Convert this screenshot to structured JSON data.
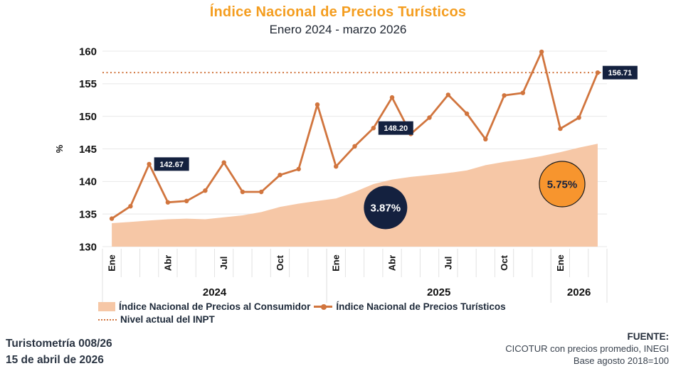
{
  "header": {
    "title": "Índice Nacional de Precios Turísticos",
    "subtitle": "Enero 2024 - marzo 2026"
  },
  "chart_data": {
    "type": "line",
    "title": "Índice Nacional de Precios Turísticos",
    "subtitle": "Enero 2024 - marzo 2026",
    "ylabel": "%",
    "ylim": [
      130,
      160
    ],
    "ytick_step": 5,
    "grid": "horizontal",
    "categories": [
      "Ene 2024",
      "Feb 2024",
      "Mar 2024",
      "Abr 2024",
      "May 2024",
      "Jun 2024",
      "Jul 2024",
      "Ago 2024",
      "Sep 2024",
      "Oct 2024",
      "Nov 2024",
      "Dic 2024",
      "Ene 2025",
      "Feb 2025",
      "Mar 2025",
      "Abr 2025",
      "May 2025",
      "Jun 2025",
      "Jul 2025",
      "Ago 2025",
      "Sep 2025",
      "Oct 2025",
      "Nov 2025",
      "Dic 2025",
      "Ene 2026",
      "Feb 2026",
      "Mar 2026"
    ],
    "month_tick_labels": [
      "Ene",
      "",
      "",
      "Abr",
      "",
      "",
      "Jul",
      "",
      "",
      "Oct",
      "",
      "",
      "Ene",
      "",
      "",
      "Abr",
      "",
      "",
      "Jul",
      "",
      "",
      "Oct",
      "",
      "",
      "Ene",
      "",
      ""
    ],
    "year_groups": [
      {
        "label": "2024",
        "start": 0,
        "end": 12
      },
      {
        "label": "2025",
        "start": 12,
        "end": 24
      },
      {
        "label": "2026",
        "start": 24,
        "end": 27
      }
    ],
    "series": [
      {
        "name": "Índice Nacional de Precios al Consumidor",
        "type": "area",
        "color": "#F6C7A6",
        "values": [
          133.6,
          133.8,
          134.0,
          134.2,
          134.3,
          134.2,
          134.5,
          134.8,
          135.3,
          136.1,
          136.6,
          137.0,
          137.4,
          138.4,
          139.6,
          140.3,
          140.7,
          141.0,
          141.3,
          141.7,
          142.5,
          143.0,
          143.4,
          143.9,
          144.5,
          145.2,
          145.8
        ]
      },
      {
        "name": "Índice Nacional de Precios Turísticos",
        "type": "line",
        "color": "#D1753E",
        "values": [
          134.3,
          136.2,
          142.67,
          136.8,
          137.0,
          138.6,
          142.9,
          138.4,
          138.4,
          141.0,
          141.9,
          151.8,
          142.3,
          145.4,
          148.2,
          152.9,
          147.3,
          149.8,
          153.3,
          150.4,
          146.5,
          153.2,
          153.6,
          159.9,
          148.1,
          149.8,
          156.71
        ]
      }
    ],
    "reference_line": {
      "label": "Nivel actual del INPT",
      "value": 156.71,
      "style": "dotted",
      "color": "#D1753E"
    },
    "point_labels": [
      {
        "month_index": 2,
        "text": "142.67"
      },
      {
        "month_index": 14,
        "text": "148.20"
      },
      {
        "month_index": 26,
        "text": "156.71"
      }
    ],
    "annotations": [
      {
        "text": "3.87%",
        "month_x": 15.15,
        "value_y": 136.0,
        "fill": "#14213F",
        "text_color": "#FFFFFF",
        "border": "none"
      },
      {
        "text": "5.75%",
        "month_x": 24.6,
        "value_y": 139.6,
        "fill": "#F7952E",
        "text_color": "#14213F",
        "border": "#1A1A1A"
      }
    ],
    "colors": {
      "title": "#F49D1F",
      "line": "#D1753E",
      "area": "#F6C7A6",
      "label_box": "#14213F",
      "grid": "#E8E8E8",
      "axis_text": "#111111"
    }
  },
  "legend": {
    "items": [
      {
        "label": "Índice Nacional de Precios al Consumidor",
        "swatch": "area"
      },
      {
        "label": "Índice Nacional de Precios Turísticos",
        "swatch": "line"
      },
      {
        "label": "Nivel actual del INPT",
        "swatch": "dotted"
      }
    ]
  },
  "footer": {
    "left_line1": "Turistometría 008/26",
    "left_line2": "15 de abril de 2026",
    "right_title": "FUENTE:",
    "right_line1": "CICOTUR con precios promedio, INEGI",
    "right_line2": "Base agosto 2018=100"
  }
}
